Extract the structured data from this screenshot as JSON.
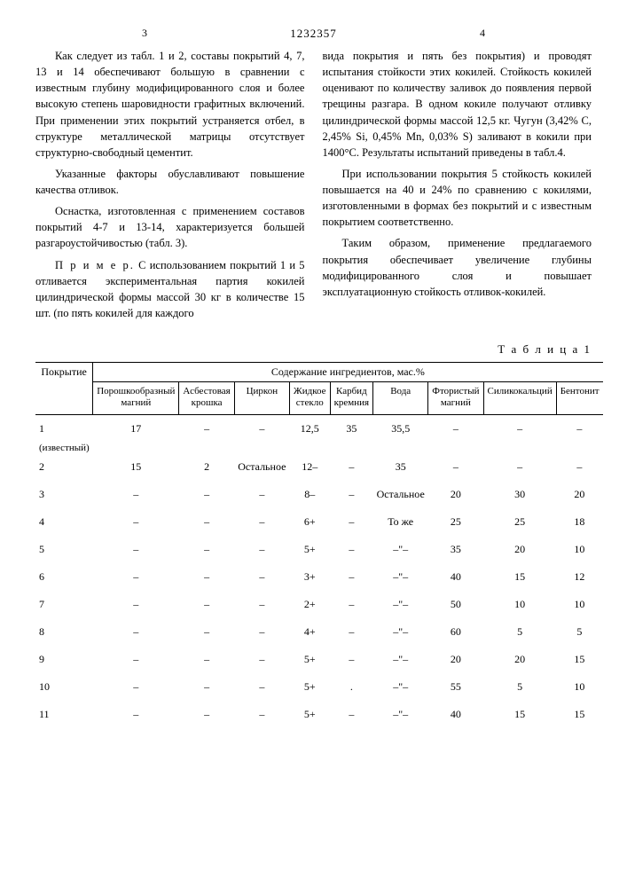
{
  "header": {
    "page_left": "3",
    "doc_number": "1232357",
    "page_right": "4"
  },
  "left_col": {
    "p1": "Как следует из табл. 1 и 2, составы покрытий 4, 7, 13 и 14 обеспечивают большую в сравнении с известным глубину модифицированного слоя и более высокую степень шаровидности графитных включений. При применении этих покрытий устраняется отбел, в структуре металлической матрицы отсутствует структурно-свободный цементит.",
    "p2": "Указанные факторы обуславливают повышение качества отливок.",
    "p3": "Оснастка, изготовленная с применением составов покрытий 4-7 и 13-14, характеризуется большей разгароустойчивостью (табл. 3).",
    "p4_label": "П р и м е р.",
    "p4": " С использованием покрытий 1 и 5 отливается экспериментальная партия кокилей цилиндрической формы массой 30 кг в количестве 15 шт. (по пять кокилей для каждого"
  },
  "right_col": {
    "p1": "вида покрытия и пять без покрытия) и проводят испытания стойкости этих кокилей. Стойкость кокилей оценивают по количеству заливок до появления первой трещины разгара. В одном кокиле получают отливку цилиндрической формы массой 12,5 кг. Чугун (3,42% C, 2,45% Si, 0,45% Mn, 0,03% S) заливают в кокили при 1400°С. Результаты испытаний приведены в табл.4.",
    "p2": "При использовании покрытия 5 стойкость кокилей повышается на 40 и 24% по сравнению с кокилями, изготовленными в формах без покрытий и с известным покрытием соответственно.",
    "p3": "Таким образом, применение предлагаемого покрытия обеспечивает увеличение глубины модифицированного слоя и повышает эксплуатационную стойкость отливок-кокилей."
  },
  "table": {
    "caption": "Т а б л и ц а  1",
    "col_group_label": "Содержание ингредиентов, мас.%",
    "row_header": "Покрытие",
    "columns": [
      "Порошкообразный магний",
      "Асбестовая крошка",
      "Циркон",
      "Жидкое стекло",
      "Карбид кремния",
      "Вода",
      "Фтористый магний",
      "Силикокальций",
      "Бентонит"
    ],
    "rows": [
      {
        "label": "1",
        "note": "(известный)",
        "cells": [
          "17",
          "–",
          "–",
          "12,5",
          "35",
          "35,5",
          "–",
          "–",
          "–"
        ]
      },
      {
        "label": "2",
        "cells": [
          "15",
          "2",
          "Остальное",
          "12–",
          "–",
          "35",
          "–",
          "–",
          "–"
        ]
      },
      {
        "label": "3",
        "cells": [
          "–",
          "–",
          "–",
          "8–",
          "–",
          "Остальное",
          "20",
          "30",
          "20"
        ]
      },
      {
        "label": "4",
        "cells": [
          "–",
          "–",
          "–",
          "6+",
          "–",
          "То же",
          "25",
          "25",
          "18"
        ]
      },
      {
        "label": "5",
        "cells": [
          "–",
          "–",
          "–",
          "5+",
          "–",
          "–\"–",
          "35",
          "20",
          "10"
        ]
      },
      {
        "label": "6",
        "cells": [
          "–",
          "–",
          "–",
          "3+",
          "–",
          "–\"–",
          "40",
          "15",
          "12"
        ]
      },
      {
        "label": "7",
        "cells": [
          "–",
          "–",
          "–",
          "2+",
          "–",
          "–\"–",
          "50",
          "10",
          "10"
        ]
      },
      {
        "label": "8",
        "cells": [
          "–",
          "–",
          "–",
          "4+",
          "–",
          "–\"–",
          "60",
          "5",
          "5"
        ]
      },
      {
        "label": "9",
        "cells": [
          "–",
          "–",
          "–",
          "5+",
          "–",
          "–\"–",
          "20",
          "20",
          "15"
        ]
      },
      {
        "label": "10",
        "cells": [
          "–",
          "–",
          "–",
          "5+",
          ".",
          "–\"–",
          "55",
          "5",
          "10"
        ]
      },
      {
        "label": "11",
        "cells": [
          "–",
          "–",
          "–",
          "5+",
          "–",
          "–\"–",
          "40",
          "15",
          "15"
        ]
      }
    ]
  }
}
